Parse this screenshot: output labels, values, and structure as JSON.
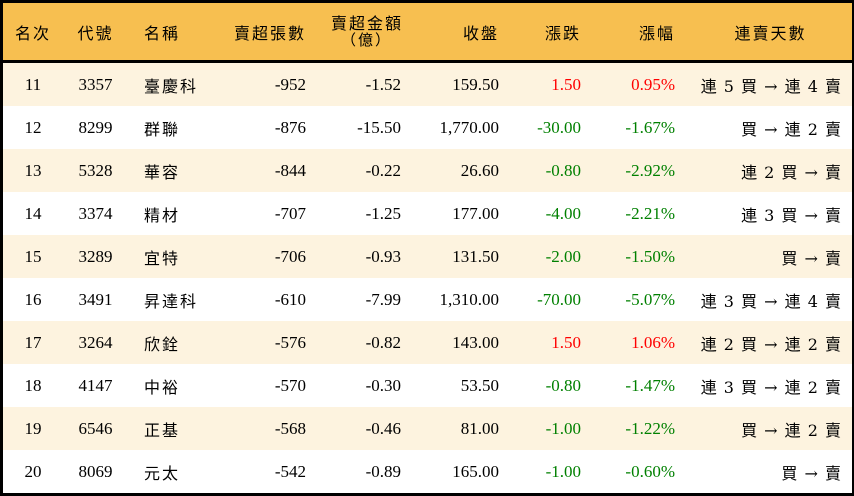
{
  "table": {
    "headers": {
      "rank": "名次",
      "code": "代號",
      "name": "名稱",
      "net_sell_lots": "賣超張數",
      "net_sell_amount": "賣超金額",
      "net_sell_amount_unit": "（億）",
      "close": "收盤",
      "change": "漲跌",
      "change_pct": "漲幅",
      "streak": "連賣天數"
    },
    "colors": {
      "header_bg": "#f7bf50",
      "odd_row_bg": "#fdf3df",
      "even_row_bg": "#ffffff",
      "up": "#ff0000",
      "down": "#008000"
    },
    "rows": [
      {
        "rank": "11",
        "code": "3357",
        "name": "臺慶科",
        "lots": "-952",
        "amount": "-1.52",
        "close": "159.50",
        "change": "1.50",
        "pct": "0.95%",
        "dir": "up",
        "streak": "連 5 買 → 連 4 賣"
      },
      {
        "rank": "12",
        "code": "8299",
        "name": "群聯",
        "lots": "-876",
        "amount": "-15.50",
        "close": "1,770.00",
        "change": "-30.00",
        "pct": "-1.67%",
        "dir": "down",
        "streak": "買 → 連 2 賣"
      },
      {
        "rank": "13",
        "code": "5328",
        "name": "華容",
        "lots": "-844",
        "amount": "-0.22",
        "close": "26.60",
        "change": "-0.80",
        "pct": "-2.92%",
        "dir": "down",
        "streak": "連 2 買 → 賣"
      },
      {
        "rank": "14",
        "code": "3374",
        "name": "精材",
        "lots": "-707",
        "amount": "-1.25",
        "close": "177.00",
        "change": "-4.00",
        "pct": "-2.21%",
        "dir": "down",
        "streak": "連 3 買 → 賣"
      },
      {
        "rank": "15",
        "code": "3289",
        "name": "宜特",
        "lots": "-706",
        "amount": "-0.93",
        "close": "131.50",
        "change": "-2.00",
        "pct": "-1.50%",
        "dir": "down",
        "streak": "買 → 賣"
      },
      {
        "rank": "16",
        "code": "3491",
        "name": "昇達科",
        "lots": "-610",
        "amount": "-7.99",
        "close": "1,310.00",
        "change": "-70.00",
        "pct": "-5.07%",
        "dir": "down",
        "streak": "連 3 買 → 連 4 賣"
      },
      {
        "rank": "17",
        "code": "3264",
        "name": "欣銓",
        "lots": "-576",
        "amount": "-0.82",
        "close": "143.00",
        "change": "1.50",
        "pct": "1.06%",
        "dir": "up",
        "streak": "連 2 買 → 連 2 賣"
      },
      {
        "rank": "18",
        "code": "4147",
        "name": "中裕",
        "lots": "-570",
        "amount": "-0.30",
        "close": "53.50",
        "change": "-0.80",
        "pct": "-1.47%",
        "dir": "down",
        "streak": "連 3 買 → 連 2 賣"
      },
      {
        "rank": "19",
        "code": "6546",
        "name": "正基",
        "lots": "-568",
        "amount": "-0.46",
        "close": "81.00",
        "change": "-1.00",
        "pct": "-1.22%",
        "dir": "down",
        "streak": "買 → 連 2 賣"
      },
      {
        "rank": "20",
        "code": "8069",
        "name": "元太",
        "lots": "-542",
        "amount": "-0.89",
        "close": "165.00",
        "change": "-1.00",
        "pct": "-0.60%",
        "dir": "down",
        "streak": "買 → 賣"
      }
    ]
  }
}
